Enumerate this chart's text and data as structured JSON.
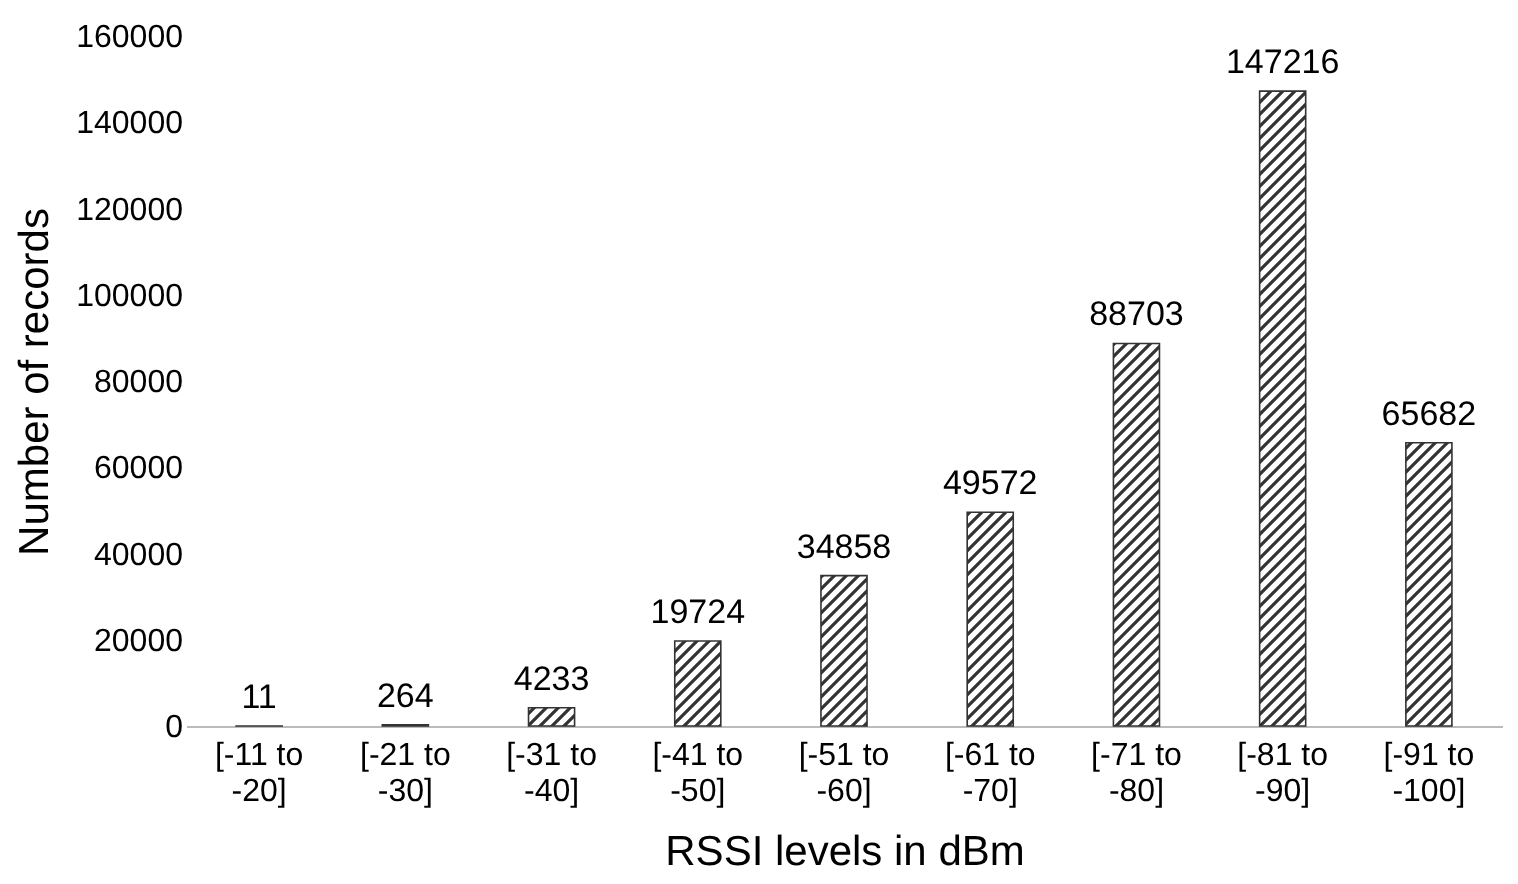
{
  "chart_data": {
    "type": "bar",
    "xlabel": "RSSI levels in dBm",
    "ylabel": "Number of records",
    "categories": [
      "[-11 to -20]",
      "[-21 to -30]",
      "[-31 to -40]",
      "[-41 to -50]",
      "[-51 to -60]",
      "[-61 to -70]",
      "[-71 to -80]",
      "[-81 to -90]",
      "[-91 to -100]"
    ],
    "values": [
      11,
      264,
      4233,
      19724,
      34858,
      49572,
      88703,
      147216,
      65682
    ],
    "color": "#333333",
    "ylim": [
      0,
      160000
    ],
    "yticks": [
      0,
      20000,
      40000,
      60000,
      80000,
      100000,
      120000,
      140000,
      160000
    ],
    "grid": false,
    "data_labels": true
  }
}
